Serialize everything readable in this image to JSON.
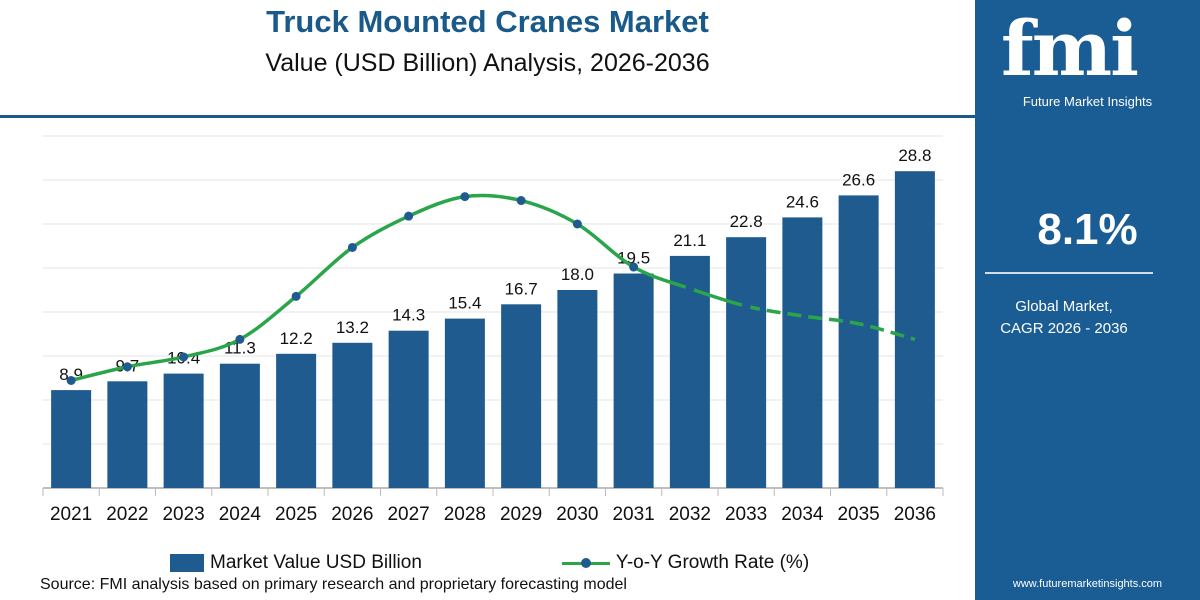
{
  "header": {
    "title": "Truck Mounted Cranes Market",
    "subtitle": "Value (USD Billion) Analysis, 2026-2036"
  },
  "legend": {
    "bar_label": "Market Value USD Billion",
    "line_label": "Y-o-Y Growth Rate (%)"
  },
  "source": "Source: FMI analysis based on primary research and proprietary forecasting model",
  "sidebar": {
    "logo_text": "fmi",
    "logo_tagline": "Future Market Insights",
    "cagr_value": "8.1%",
    "cagr_label_line1": "Global Market,",
    "cagr_label_line2": "CAGR 2026 - 2036",
    "url": "www.futuremarketinsights.com"
  },
  "colors": {
    "bar": "#1f5b8e",
    "line": "#2aa54a",
    "marker": "#1f5b8e",
    "brand": "#1a5c94"
  },
  "chart_data": {
    "type": "bar",
    "categories": [
      "2021",
      "2022",
      "2023",
      "2024",
      "2025",
      "2026",
      "2027",
      "2028",
      "2029",
      "2030",
      "2031",
      "2032",
      "2033",
      "2034",
      "2035",
      "2036"
    ],
    "series": [
      {
        "name": "Market Value USD Billion",
        "type": "bar",
        "values": [
          8.9,
          9.7,
          10.4,
          11.3,
          12.2,
          13.2,
          14.3,
          15.4,
          16.7,
          18.0,
          19.5,
          21.1,
          22.8,
          24.6,
          26.6,
          28.8
        ],
        "value_labels": [
          "8.9",
          "9.7",
          "10.4",
          "11.3",
          "12.2",
          "13.2",
          "14.3",
          "15.4",
          "16.7",
          "18.0",
          "19.5",
          "21.1",
          "22.8",
          "24.6",
          "26.6",
          "28.8"
        ]
      },
      {
        "name": "Y-o-Y Growth Rate (%)",
        "type": "line",
        "values": [
          5.5,
          6.2,
          6.7,
          7.6,
          9.8,
          12.3,
          13.9,
          14.9,
          14.7,
          13.5,
          11.3,
          10.2,
          9.3,
          8.8,
          8.4,
          7.6
        ],
        "dashed_from_index": 13
      }
    ],
    "ylim": [
      0,
      32
    ],
    "y2lim": [
      0,
      18
    ],
    "grid": "horizontal"
  }
}
